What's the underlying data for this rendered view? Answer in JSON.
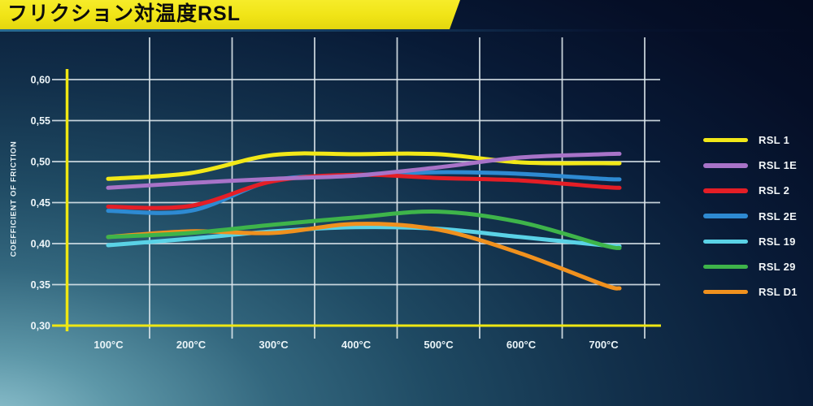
{
  "header": {
    "title": "フリクション対温度RSL"
  },
  "colors": {
    "title_bar": "#f0e416",
    "title_text": "#0c0c0c",
    "grid": "#dfe9ee",
    "axis_yellow": "#efe713",
    "background_light_corner": "#93c6d2",
    "background_dark_corner": "#040b20"
  },
  "chart_data": {
    "type": "line",
    "title": "フリクション対温度RSL",
    "ylabel": "COEFFICIENT OF FRICTION",
    "xlabel": "",
    "x": [
      100,
      200,
      300,
      400,
      500,
      600,
      700
    ],
    "x_tick_labels": [
      "100°C",
      "200°C",
      "300°C",
      "400°C",
      "500°C",
      "600°C",
      "700°C"
    ],
    "y_ticks": [
      0.6,
      0.55,
      0.5,
      0.45,
      0.4,
      0.35,
      0.3
    ],
    "y_tick_labels": [
      "0,60",
      "0,55",
      "0,50",
      "0,45",
      "0,40",
      "0,35",
      "0,30"
    ],
    "ylim": [
      0.3,
      0.6
    ],
    "grid": true,
    "legend_position": "right",
    "series": [
      {
        "name": "RSL 1",
        "color": "#f2e818",
        "values": [
          0.479,
          0.486,
          0.508,
          0.509,
          0.509,
          0.499,
          0.498
        ]
      },
      {
        "name": "RSL 1E",
        "color": "#a873c8",
        "values": [
          0.468,
          0.474,
          0.479,
          0.483,
          0.493,
          0.505,
          0.509
        ]
      },
      {
        "name": "RSL 2",
        "color": "#e41e26",
        "values": [
          0.445,
          0.446,
          0.476,
          0.484,
          0.48,
          0.477,
          0.469
        ]
      },
      {
        "name": "RSL 2E",
        "color": "#2e8ad2",
        "values": [
          0.44,
          0.44,
          0.477,
          0.483,
          0.487,
          0.485,
          0.479
        ]
      },
      {
        "name": "RSL 19",
        "color": "#5ad2e6",
        "values": [
          0.398,
          0.406,
          0.415,
          0.42,
          0.418,
          0.408,
          0.398
        ]
      },
      {
        "name": "RSL 29",
        "color": "#3eb44a",
        "values": [
          0.408,
          0.413,
          0.423,
          0.432,
          0.439,
          0.426,
          0.398
        ]
      },
      {
        "name": "RSL D1",
        "color": "#f0911e",
        "values": [
          0.408,
          0.415,
          0.413,
          0.424,
          0.417,
          0.388,
          0.35
        ]
      }
    ]
  }
}
